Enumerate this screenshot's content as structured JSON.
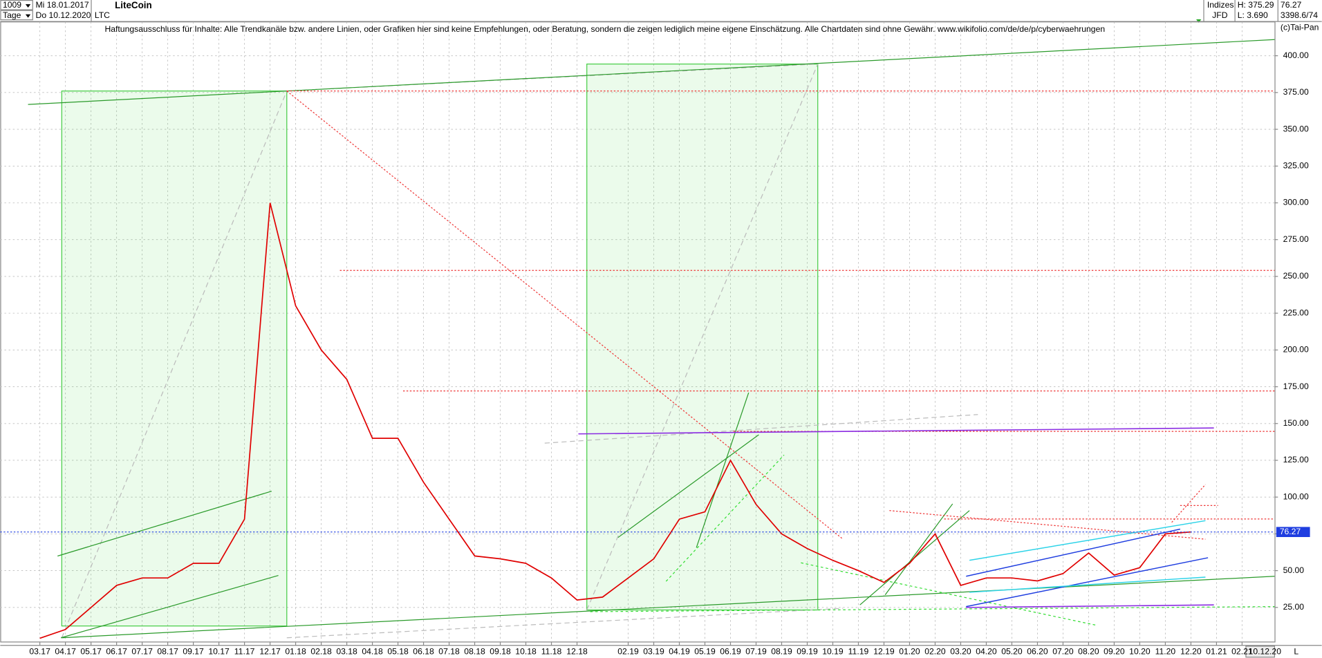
{
  "header": {
    "count": "1009",
    "start_date": "Mi 18.01.2017",
    "period": "Tage",
    "end_date": "Do 10.12.2020",
    "exchange_group": "Indizes",
    "broker": "JFD",
    "high": "H: 375.29",
    "low": "L: 3.690",
    "volume_info": "3398.6/74",
    "copyright": "(c)Tai-Pan",
    "disclaimer": "Haftungsausschluss für Inhalte: Alle Trendkanäle bzw. andere Linien, oder Grafiken hier sind keine Empfehlungen, oder Beratung, sondern die zeigen lediglich meine eigene Einschätzung. Alle Chartdaten sind ohne Gewähr.  www.wikifolio.com/de/de/p/cyberwaehrungen",
    "cursor_date": "10.12.20",
    "axis_mode": "L"
  },
  "chart_data": {
    "type": "line",
    "title": "LiteCoin",
    "categories": [
      "03.17",
      "04.17",
      "05.17",
      "06.17",
      "07.17",
      "08.17",
      "09.17",
      "10.17",
      "11.17",
      "12.17",
      "01.18",
      "02.18",
      "03.18",
      "04.18",
      "05.18",
      "06.18",
      "07.18",
      "08.18",
      "09.18",
      "10.18",
      "11.18",
      "12.18",
      null,
      "02.19",
      "03.19",
      "04.19",
      "05.19",
      "06.19",
      "07.19",
      "08.19",
      "09.19",
      "10.19",
      "11.19",
      "12.19",
      "01.20",
      "02.20",
      "03.20",
      "04.20",
      "05.20",
      "06.20",
      "07.20",
      "08.20",
      "09.20",
      "10.20",
      "11.20",
      "12.20",
      "01.21",
      "02.21"
    ],
    "series": [
      {
        "name": "LTC",
        "color": "#e00000",
        "values": [
          4,
          10,
          25,
          40,
          45,
          45,
          55,
          55,
          85,
          300,
          230,
          200,
          180,
          140,
          140,
          110,
          85,
          60,
          58,
          55,
          45,
          30,
          32,
          45,
          58,
          85,
          90,
          125,
          95,
          75,
          65,
          57,
          50,
          42,
          55,
          75,
          40,
          45,
          45,
          43,
          48,
          62,
          47,
          52,
          75,
          76.27,
          null,
          null
        ]
      }
    ],
    "last_price": 76.27,
    "ylim": [
      1.5,
      423
    ],
    "yticks": [
      {
        "value": 25,
        "label": "25.00"
      },
      {
        "value": 50,
        "label": "50.00"
      },
      {
        "value": 75,
        "label": "75.00"
      },
      {
        "value": 100,
        "label": "100.00"
      },
      {
        "value": 125,
        "label": "125.00"
      },
      {
        "value": 150,
        "label": "150.00"
      },
      {
        "value": 175,
        "label": "175.00"
      },
      {
        "value": 200,
        "label": "200.00"
      },
      {
        "value": 225,
        "label": "225.00"
      },
      {
        "value": 250,
        "label": "250.00"
      },
      {
        "value": 275,
        "label": "275.00"
      },
      {
        "value": 300,
        "label": "300.00"
      },
      {
        "value": 325,
        "label": "325.00"
      },
      {
        "value": 350,
        "label": "350.00"
      },
      {
        "value": 375,
        "label": "375.00"
      },
      {
        "value": 400,
        "label": "400.00"
      }
    ],
    "grid": true
  }
}
